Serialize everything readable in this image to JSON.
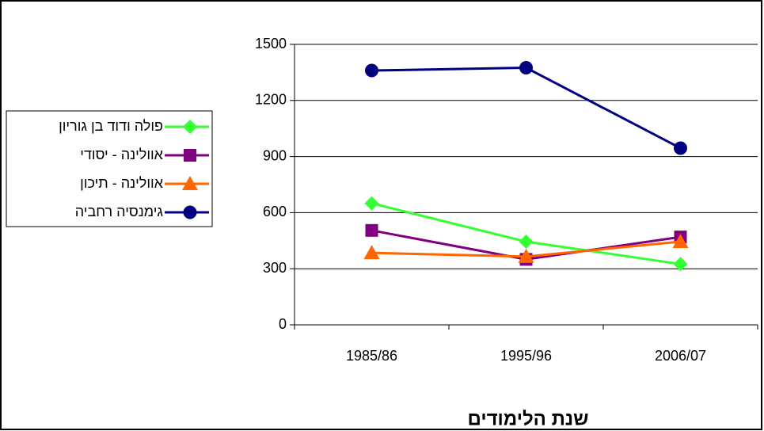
{
  "chart_data": {
    "type": "line",
    "x_label": "שנת הלימודים",
    "categories": [
      "1985/86",
      "1995/96",
      "2006/07"
    ],
    "series": [
      {
        "name": "פולה ודוד בן גוריון",
        "color": "#33ff33",
        "marker": "diamond",
        "values": [
          650,
          445,
          325
        ]
      },
      {
        "name": "אוולינה - יסודי",
        "color": "#800080",
        "marker": "square",
        "values": [
          505,
          350,
          470
        ]
      },
      {
        "name": "אוולינה - תיכון",
        "color": "#ff6600",
        "marker": "triangle",
        "values": [
          385,
          365,
          445
        ]
      },
      {
        "name": "גימנסיה רחביה",
        "color": "#000080",
        "marker": "circle",
        "values": [
          1360,
          1375,
          945
        ]
      }
    ],
    "ylim": [
      0,
      1500
    ],
    "yticks": [
      0,
      300,
      600,
      900,
      1200,
      1500
    ],
    "grid": true,
    "legend": "left"
  }
}
